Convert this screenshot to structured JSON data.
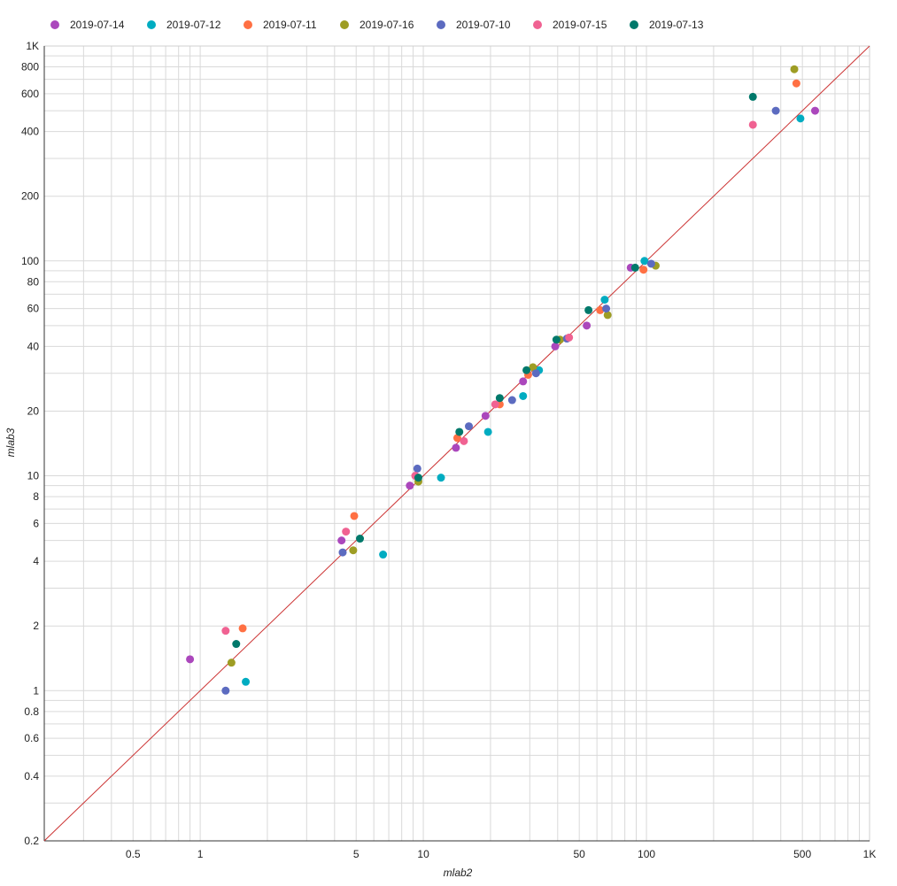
{
  "chart_data": {
    "type": "scatter",
    "title": "",
    "xlabel": "mlab2",
    "ylabel": "mlab3",
    "xscale": "log",
    "yscale": "log",
    "xlim": [
      0.2,
      1000
    ],
    "ylim": [
      0.2,
      1000
    ],
    "grid": true,
    "legend_position": "top",
    "reference_line": {
      "type": "y=x",
      "color": "#cc3333"
    },
    "x_ticks": [
      {
        "value": 0.5,
        "label": "0.5"
      },
      {
        "value": 1,
        "label": "1"
      },
      {
        "value": 5,
        "label": "5"
      },
      {
        "value": 10,
        "label": "10"
      },
      {
        "value": 50,
        "label": "50"
      },
      {
        "value": 100,
        "label": "100"
      },
      {
        "value": 500,
        "label": "500"
      },
      {
        "value": 1000,
        "label": "1K"
      }
    ],
    "y_ticks": [
      {
        "value": 0.2,
        "label": "0.2"
      },
      {
        "value": 0.4,
        "label": "0.4"
      },
      {
        "value": 0.6,
        "label": "0.6"
      },
      {
        "value": 0.8,
        "label": "0.8"
      },
      {
        "value": 1,
        "label": "1"
      },
      {
        "value": 2,
        "label": "2"
      },
      {
        "value": 4,
        "label": "4"
      },
      {
        "value": 6,
        "label": "6"
      },
      {
        "value": 8,
        "label": "8"
      },
      {
        "value": 10,
        "label": "10"
      },
      {
        "value": 20,
        "label": "20"
      },
      {
        "value": 40,
        "label": "40"
      },
      {
        "value": 60,
        "label": "60"
      },
      {
        "value": 80,
        "label": "80"
      },
      {
        "value": 100,
        "label": "100"
      },
      {
        "value": 200,
        "label": "200"
      },
      {
        "value": 400,
        "label": "400"
      },
      {
        "value": 600,
        "label": "600"
      },
      {
        "value": 800,
        "label": "800"
      },
      {
        "value": 1000,
        "label": "1K"
      }
    ],
    "series": [
      {
        "name": "2019-07-14",
        "color": "#ab47bc",
        "points": [
          [
            0.9,
            1.4
          ],
          [
            4.3,
            5.0
          ],
          [
            8.7,
            9.0
          ],
          [
            14,
            13.5
          ],
          [
            19,
            19
          ],
          [
            28,
            27.5
          ],
          [
            39,
            40
          ],
          [
            54,
            50
          ],
          [
            85,
            93
          ],
          [
            570,
            500
          ]
        ]
      },
      {
        "name": "2019-07-12",
        "color": "#00acc1",
        "points": [
          [
            1.6,
            1.1
          ],
          [
            6.6,
            4.3
          ],
          [
            12,
            9.8
          ],
          [
            19.5,
            16
          ],
          [
            28,
            23.5
          ],
          [
            33,
            31
          ],
          [
            65,
            66
          ],
          [
            98,
            100
          ],
          [
            490,
            460
          ]
        ]
      },
      {
        "name": "2019-07-11",
        "color": "#ff7043",
        "points": [
          [
            1.55,
            1.95
          ],
          [
            4.9,
            6.5
          ],
          [
            14.2,
            15
          ],
          [
            22,
            21.5
          ],
          [
            29.5,
            29.5
          ],
          [
            62,
            59
          ],
          [
            97,
            91
          ],
          [
            470,
            670
          ]
        ]
      },
      {
        "name": "2019-07-16",
        "color": "#9e9d24",
        "points": [
          [
            1.38,
            1.35
          ],
          [
            4.85,
            4.5
          ],
          [
            9.5,
            9.4
          ],
          [
            31,
            32
          ],
          [
            41,
            43
          ],
          [
            67,
            56
          ],
          [
            110,
            95
          ],
          [
            460,
            780
          ]
        ]
      },
      {
        "name": "2019-07-10",
        "color": "#5c6bc0",
        "points": [
          [
            1.3,
            1.0
          ],
          [
            4.35,
            4.4
          ],
          [
            9.4,
            10.8
          ],
          [
            16,
            17
          ],
          [
            25,
            22.5
          ],
          [
            32,
            30
          ],
          [
            44,
            43.5
          ],
          [
            66,
            60
          ],
          [
            105,
            97
          ],
          [
            380,
            500
          ]
        ]
      },
      {
        "name": "2019-07-15",
        "color": "#f06292",
        "points": [
          [
            1.3,
            1.9
          ],
          [
            4.5,
            5.5
          ],
          [
            9.2,
            10
          ],
          [
            15.2,
            14.5
          ],
          [
            21,
            21.5
          ],
          [
            45,
            44
          ],
          [
            300,
            430
          ]
        ]
      },
      {
        "name": "2019-07-13",
        "color": "#00796b",
        "points": [
          [
            1.45,
            1.65
          ],
          [
            5.2,
            5.1
          ],
          [
            9.5,
            9.8
          ],
          [
            14.5,
            16
          ],
          [
            22,
            23
          ],
          [
            29,
            31
          ],
          [
            39.5,
            43
          ],
          [
            55,
            59
          ],
          [
            89,
            93
          ],
          [
            300,
            580
          ]
        ]
      }
    ]
  }
}
